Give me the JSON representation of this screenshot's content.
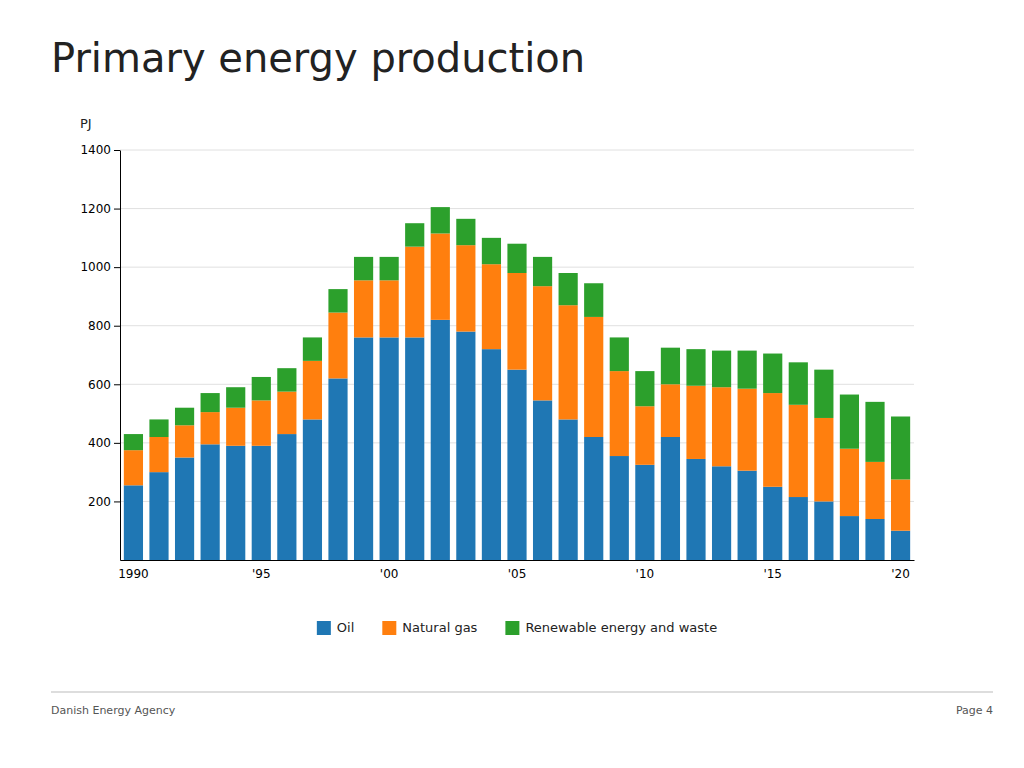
{
  "chart_data": {
    "type": "bar",
    "stacked": true,
    "grid": true,
    "legend": "bottom",
    "title": "Primary energy production",
    "ylabel": "PJ",
    "categories": [
      "1990",
      null,
      null,
      null,
      null,
      "'95",
      null,
      null,
      null,
      null,
      "'00",
      null,
      null,
      null,
      null,
      "'05",
      null,
      null,
      null,
      null,
      "'10",
      null,
      null,
      null,
      null,
      "'15",
      null,
      null,
      null,
      null,
      "'20"
    ],
    "series": [
      {
        "name": "Oil",
        "values": [
          255,
          300,
          350,
          395,
          390,
          390,
          430,
          480,
          620,
          760,
          760,
          760,
          820,
          780,
          720,
          650,
          545,
          480,
          420,
          355,
          325,
          420,
          345,
          320,
          305,
          250,
          215,
          200,
          150,
          140,
          100
        ]
      },
      {
        "name": "Natural gas",
        "values": [
          120,
          120,
          110,
          110,
          130,
          155,
          145,
          200,
          225,
          195,
          195,
          310,
          295,
          295,
          290,
          330,
          390,
          390,
          410,
          290,
          200,
          180,
          250,
          270,
          280,
          320,
          315,
          285,
          230,
          195,
          175
        ]
      },
      {
        "name": "Renewable energy and waste",
        "values": [
          55,
          60,
          60,
          65,
          70,
          80,
          80,
          80,
          80,
          80,
          80,
          80,
          90,
          90,
          90,
          100,
          100,
          110,
          115,
          115,
          120,
          125,
          125,
          125,
          130,
          135,
          145,
          165,
          185,
          205,
          215
        ]
      }
    ],
    "ylim": [
      0,
      1400
    ],
    "yticks": [
      200,
      400,
      600,
      800,
      1000,
      1200,
      1400
    ],
    "annotations": [
      "Danish Energy Agency",
      "Page 4"
    ]
  }
}
